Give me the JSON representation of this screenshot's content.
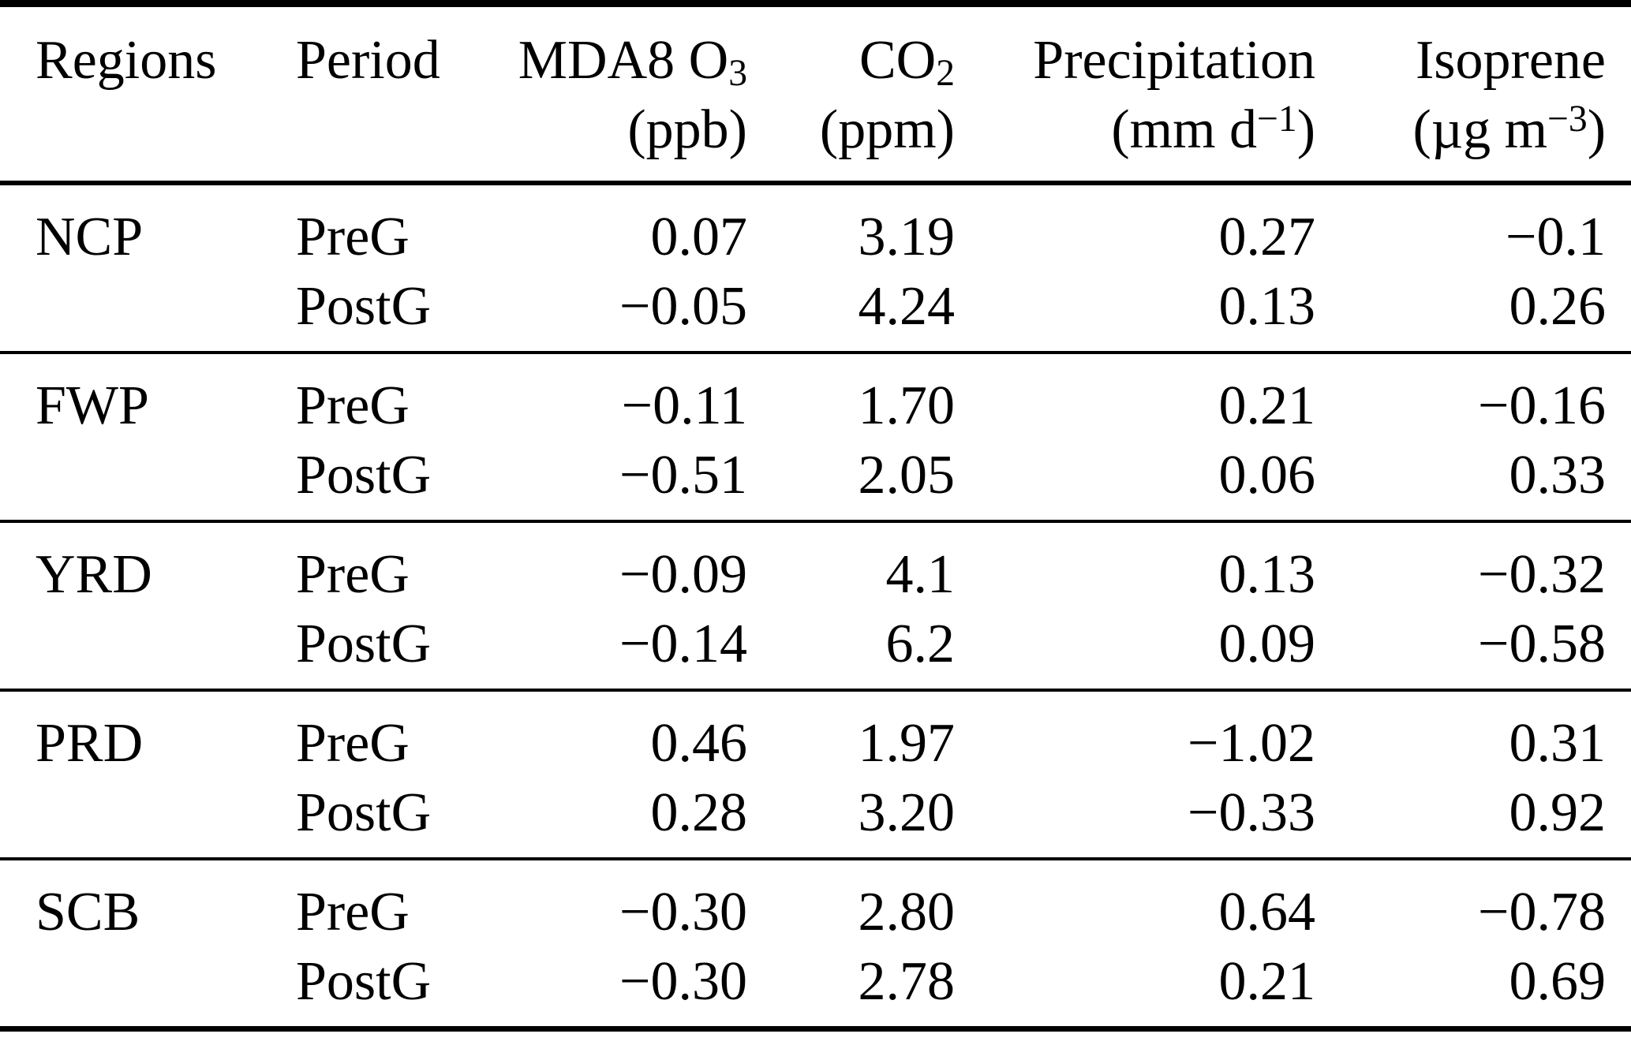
{
  "table": {
    "headers": {
      "regions": "Regions",
      "period": "Period",
      "mda8": {
        "main": "MDA8 O",
        "sub": "3",
        "unit": "(ppb)"
      },
      "co2": {
        "main": "CO",
        "sub": "2",
        "unit": "(ppm)"
      },
      "precip": {
        "main": "Precipitation",
        "unit_pre": "(mm d",
        "unit_sup": "−1",
        "unit_post": ")"
      },
      "isoprene": {
        "main": "Isoprene",
        "unit_pre": "(µg m",
        "unit_sup": "−3",
        "unit_post": ")"
      }
    },
    "groups": [
      {
        "region": "NCP",
        "rows": [
          {
            "period": "PreG",
            "mda8": "0.07",
            "co2": "3.19",
            "precip": "0.27",
            "isoprene": "−0.1"
          },
          {
            "period": "PostG",
            "mda8": "−0.05",
            "co2": "4.24",
            "precip": "0.13",
            "isoprene": "0.26"
          }
        ]
      },
      {
        "region": "FWP",
        "rows": [
          {
            "period": "PreG",
            "mda8": "−0.11",
            "co2": "1.70",
            "precip": "0.21",
            "isoprene": "−0.16"
          },
          {
            "period": "PostG",
            "mda8": "−0.51",
            "co2": "2.05",
            "precip": "0.06",
            "isoprene": "0.33"
          }
        ]
      },
      {
        "region": "YRD",
        "rows": [
          {
            "period": "PreG",
            "mda8": "−0.09",
            "co2": "4.1",
            "precip": "0.13",
            "isoprene": "−0.32"
          },
          {
            "period": "PostG",
            "mda8": "−0.14",
            "co2": "6.2",
            "precip": "0.09",
            "isoprene": "−0.58"
          }
        ]
      },
      {
        "region": "PRD",
        "rows": [
          {
            "period": "PreG",
            "mda8": "0.46",
            "co2": "1.97",
            "precip": "−1.02",
            "isoprene": "0.31"
          },
          {
            "period": "PostG",
            "mda8": "0.28",
            "co2": "3.20",
            "precip": "−0.33",
            "isoprene": "0.92"
          }
        ]
      },
      {
        "region": "SCB",
        "rows": [
          {
            "period": "PreG",
            "mda8": "−0.30",
            "co2": "2.80",
            "precip": "0.64",
            "isoprene": "−0.78"
          },
          {
            "period": "PostG",
            "mda8": "−0.30",
            "co2": "2.78",
            "precip": "0.21",
            "isoprene": "0.69"
          }
        ]
      }
    ]
  }
}
